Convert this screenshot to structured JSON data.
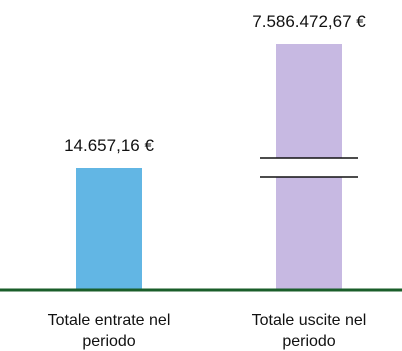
{
  "chart_data": {
    "type": "bar",
    "categories": [
      [
        "Totale entrate nel",
        "periodo"
      ],
      [
        "Totale uscite nel",
        "periodo"
      ]
    ],
    "values": [
      14657.16,
      7586472.67
    ],
    "data_labels": [
      "14.657,16 €",
      "7.586.472,67 €"
    ],
    "colors": [
      "#62b6e4",
      "#c7b9e2"
    ],
    "axis_break": [
      false,
      true
    ],
    "axis_color": "#1a5e2a",
    "grid": false,
    "legend": "none"
  }
}
